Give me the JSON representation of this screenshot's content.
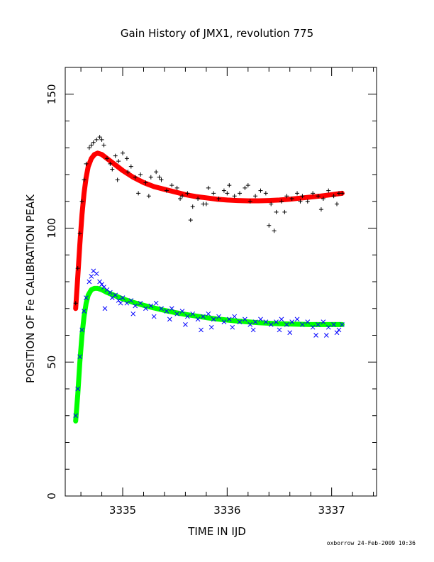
{
  "chart_data": {
    "type": "scatter",
    "title": "Gain History of JMX1, revolution 775",
    "xlabel": "TIME IN IJD",
    "ylabel": "POSITION OF Fe CALIBRATION PEAK",
    "xlim": [
      3334.45,
      3337.43
    ],
    "ylim": [
      0,
      160
    ],
    "xticks": [
      3335,
      3336,
      3337
    ],
    "xtick_labels": [
      "3335",
      "3336",
      "3337"
    ],
    "yticks": [
      0,
      50,
      100,
      150
    ],
    "ytick_labels": [
      "0",
      "50",
      "100",
      "150"
    ],
    "x_minor_step": 0.2,
    "y_minor_step": 10,
    "grid": false,
    "legend": "none",
    "series": [
      {
        "marker": "plus",
        "color": "#000000",
        "x": [
          3334.55,
          3334.57,
          3334.59,
          3334.61,
          3334.63,
          3334.65,
          3334.68,
          3334.7,
          3334.72,
          3334.75,
          3334.78,
          3334.8,
          3334.82,
          3334.85,
          3334.88,
          3334.9,
          3334.93,
          3334.96,
          3335.0,
          3335.04,
          3335.08,
          3335.12,
          3335.17,
          3335.22,
          3335.27,
          3335.32,
          3335.37,
          3335.42,
          3335.47,
          3335.52,
          3335.57,
          3335.62,
          3335.67,
          3335.72,
          3335.77,
          3335.82,
          3335.87,
          3335.92,
          3335.97,
          3336.02,
          3336.07,
          3336.12,
          3336.17,
          3336.22,
          3336.27,
          3336.32,
          3336.37,
          3336.42,
          3336.47,
          3336.52,
          3336.57,
          3336.62,
          3336.67,
          3336.72,
          3336.77,
          3336.82,
          3336.87,
          3336.92,
          3336.97,
          3337.02,
          3337.07,
          3337.1,
          3334.95,
          3335.05,
          3335.15,
          3335.25,
          3335.35,
          3335.55,
          3335.65,
          3335.8,
          3336.0,
          3336.2,
          3336.4,
          3336.45,
          3336.55,
          3336.7,
          3336.9,
          3337.05
        ],
        "y": [
          72,
          85,
          98,
          110,
          118,
          124,
          130,
          131,
          132,
          133,
          134,
          133,
          131,
          126,
          124,
          122,
          127,
          125,
          128,
          126,
          123,
          119,
          120,
          117,
          119,
          121,
          118,
          114,
          116,
          115,
          112,
          113,
          108,
          111,
          109,
          115,
          113,
          111,
          114,
          116,
          112,
          113,
          115,
          110,
          112,
          114,
          113,
          109,
          106,
          110,
          112,
          111,
          113,
          112,
          110,
          113,
          112,
          111,
          114,
          112,
          113,
          113,
          118,
          121,
          113,
          112,
          119,
          111,
          103,
          109,
          113,
          116,
          101,
          99,
          106,
          110,
          107,
          109
        ]
      },
      {
        "marker": "x",
        "color": "#0000ff",
        "x": [
          3334.55,
          3334.57,
          3334.59,
          3334.61,
          3334.63,
          3334.65,
          3334.68,
          3334.7,
          3334.72,
          3334.75,
          3334.78,
          3334.8,
          3334.82,
          3334.85,
          3334.88,
          3334.9,
          3334.93,
          3334.96,
          3335.0,
          3335.04,
          3335.08,
          3335.12,
          3335.17,
          3335.22,
          3335.27,
          3335.32,
          3335.37,
          3335.42,
          3335.47,
          3335.52,
          3335.57,
          3335.62,
          3335.67,
          3335.72,
          3335.77,
          3335.82,
          3335.87,
          3335.92,
          3335.97,
          3336.02,
          3336.07,
          3336.12,
          3336.17,
          3336.22,
          3336.27,
          3336.32,
          3336.37,
          3336.42,
          3336.47,
          3336.52,
          3336.57,
          3336.62,
          3336.67,
          3336.72,
          3336.77,
          3336.82,
          3336.87,
          3336.92,
          3336.97,
          3337.02,
          3337.07,
          3337.1,
          3334.83,
          3334.98,
          3335.1,
          3335.3,
          3335.45,
          3335.6,
          3335.75,
          3335.85,
          3336.05,
          3336.25,
          3336.5,
          3336.6,
          3336.85,
          3336.95,
          3337.05
        ],
        "y": [
          30,
          40,
          52,
          62,
          69,
          74,
          80,
          82,
          84,
          83,
          80,
          79,
          78,
          77,
          76,
          74,
          75,
          73,
          74,
          72,
          73,
          71,
          72,
          70,
          71,
          72,
          70,
          69,
          70,
          68,
          69,
          67,
          68,
          66,
          67,
          68,
          66,
          67,
          65,
          66,
          67,
          65,
          66,
          64,
          65,
          66,
          65,
          64,
          65,
          66,
          64,
          65,
          66,
          64,
          65,
          63,
          64,
          65,
          63,
          64,
          62,
          64,
          70,
          72,
          68,
          67,
          66,
          64,
          62,
          63,
          63,
          62,
          62,
          61,
          60,
          60,
          61
        ]
      }
    ],
    "fit_curves": [
      {
        "color": "#ff0000",
        "x": [
          3334.55,
          3334.57,
          3334.59,
          3334.61,
          3334.63,
          3334.65,
          3334.67,
          3334.7,
          3334.73,
          3334.76,
          3334.8,
          3334.85,
          3334.9,
          3334.95,
          3335.0,
          3335.1,
          3335.2,
          3335.3,
          3335.4,
          3335.5,
          3335.6,
          3335.7,
          3335.8,
          3335.9,
          3336.0,
          3336.1,
          3336.2,
          3336.3,
          3336.4,
          3336.5,
          3336.6,
          3336.7,
          3336.8,
          3336.9,
          3337.0,
          3337.1
        ],
        "y": [
          70,
          82,
          94,
          105,
          113,
          119,
          123,
          126,
          127.5,
          128,
          127.5,
          126,
          124.5,
          123,
          121.5,
          119,
          117,
          115.5,
          114.5,
          113.5,
          112.5,
          111.8,
          111.3,
          110.8,
          110.5,
          110.3,
          110.2,
          110.2,
          110.3,
          110.5,
          110.8,
          111.2,
          111.6,
          112,
          112.5,
          113
        ]
      },
      {
        "color": "#00ff00",
        "x": [
          3334.55,
          3334.57,
          3334.59,
          3334.61,
          3334.63,
          3334.65,
          3334.67,
          3334.7,
          3334.73,
          3334.76,
          3334.8,
          3334.85,
          3334.9,
          3334.95,
          3335.0,
          3335.1,
          3335.2,
          3335.3,
          3335.4,
          3335.5,
          3335.6,
          3335.7,
          3335.8,
          3335.9,
          3336.0,
          3336.1,
          3336.2,
          3336.3,
          3336.4,
          3336.5,
          3336.6,
          3336.7,
          3336.8,
          3336.9,
          3337.0,
          3337.1
        ],
        "y": [
          28,
          38,
          50,
          60,
          67,
          72,
          75,
          77,
          77.5,
          77.5,
          77,
          76,
          75.2,
          74.4,
          73.6,
          72.3,
          71.2,
          70.2,
          69.3,
          68.5,
          67.8,
          67.2,
          66.6,
          66.1,
          65.7,
          65.3,
          65,
          64.7,
          64.5,
          64.3,
          64.2,
          64.1,
          64,
          64,
          64,
          64
        ]
      }
    ]
  },
  "stamp": "oxborrow 24-Feb-2009 10:36"
}
